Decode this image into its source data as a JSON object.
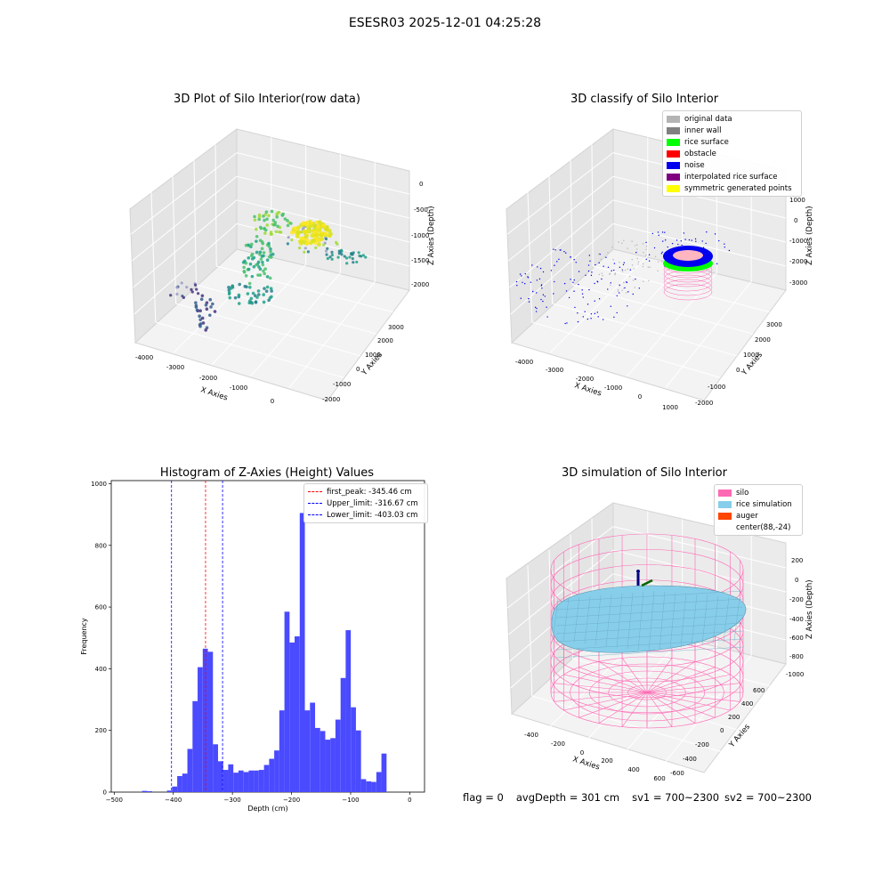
{
  "figure": {
    "suptitle": "ESESR03 2025-12-01 04:25:28"
  },
  "panels": {
    "raw": {
      "title": "3D Plot of Silo Interior(row data)",
      "xlabel": "X Axies",
      "ylabel": "Y Axies",
      "zlabel": "Z Axies (Depth)",
      "xticks": [
        "-4000",
        "-3000",
        "-2000",
        "-1000",
        "0"
      ],
      "yticks": [
        "3000",
        "2000",
        "1000",
        "0",
        "-1000",
        "-2000"
      ],
      "zticks": [
        "0",
        "-500",
        "-1000",
        "-1500",
        "-2000"
      ]
    },
    "classify": {
      "title": "3D classify of Silo Interior",
      "xlabel": "X Axies",
      "ylabel": "Y Axies",
      "zlabel": "Z Axies (Depth)",
      "xticks": [
        "-4000",
        "-3000",
        "-2000",
        "-1000",
        "0",
        "1000"
      ],
      "yticks": [
        "3000",
        "2000",
        "1000",
        "0",
        "-1000",
        "-2000"
      ],
      "zticks": [
        "1000",
        "0",
        "-1000",
        "-2000",
        "-3000"
      ],
      "legend": [
        {
          "label": "original data",
          "color": "#b4b4b4"
        },
        {
          "label": "inner wall",
          "color": "#808080"
        },
        {
          "label": "rice surface",
          "color": "#00ff00"
        },
        {
          "label": "obstacle",
          "color": "#ff0000"
        },
        {
          "label": "noise",
          "color": "#0000ee"
        },
        {
          "label": "interpolated rice surface",
          "color": "#800080"
        },
        {
          "label": "symmetric generated points",
          "color": "#ffff00"
        }
      ]
    },
    "histogram": {
      "title": "Histogram of Z-Axies (Height) Values",
      "xlabel": "Depth (cm)",
      "ylabel": "Frequency",
      "legend": [
        {
          "label": "first_peak: -345.46 cm",
          "color": "#ff0000"
        },
        {
          "label": "Upper_limit: -316.67 cm",
          "color": "#0000ff"
        },
        {
          "label": "Lower_limit: -403.03 cm",
          "color": "#0000ff"
        }
      ]
    },
    "simulation": {
      "title": "3D simulation of Silo Interior",
      "xlabel": "X Axies",
      "ylabel": "Y Axies",
      "zlabel": "Z Axies (Depth)",
      "xticks": [
        "-400",
        "-200",
        "0",
        "200",
        "400",
        "600"
      ],
      "yticks": [
        "600",
        "400",
        "200",
        "0",
        "-200",
        "-400",
        "-600"
      ],
      "zticks": [
        "200",
        "0",
        "-200",
        "-400",
        "-600",
        "-800",
        "-1000"
      ],
      "legend": [
        {
          "label": "silo",
          "color": "#ff69b4"
        },
        {
          "label": "rice simulation",
          "color": "#87ceeb"
        },
        {
          "label": "auger",
          "color": "#ff4500"
        },
        {
          "label": "center(88,-24)",
          "color": ""
        }
      ]
    }
  },
  "footer": {
    "flag": "flag = 0",
    "avg_depth": "avgDepth = 301 cm",
    "sv1": "sv1 = 700~2300",
    "sv2": "sv2 = 700~2300"
  },
  "colors": {
    "hist_bar": "#4a4aff",
    "silo": "#ff69b4",
    "rice": "#87ceeb"
  },
  "chart_data": {
    "type": "bar",
    "title": "Histogram of Z-Axies (Height) Values",
    "xlabel": "Depth (cm)",
    "ylabel": "Frequency",
    "xlim": [
      -505,
      25
    ],
    "ylim": [
      0,
      1010
    ],
    "xticks": [
      -500,
      -400,
      -300,
      -200,
      -100,
      0
    ],
    "yticks": [
      0,
      200,
      400,
      600,
      800,
      1000
    ],
    "bin_width": 8.64,
    "bins": [
      {
        "x": -453.0,
        "y": 4
      },
      {
        "x": -444.4,
        "y": 3
      },
      {
        "x": -410.7,
        "y": 5
      },
      {
        "x": -402.1,
        "y": 18
      },
      {
        "x": -393.4,
        "y": 52
      },
      {
        "x": -384.8,
        "y": 60
      },
      {
        "x": -376.2,
        "y": 140
      },
      {
        "x": -367.5,
        "y": 295
      },
      {
        "x": -358.9,
        "y": 405
      },
      {
        "x": -350.2,
        "y": 465
      },
      {
        "x": -341.6,
        "y": 455
      },
      {
        "x": -333.0,
        "y": 155
      },
      {
        "x": -324.3,
        "y": 100
      },
      {
        "x": -315.7,
        "y": 72
      },
      {
        "x": -307.1,
        "y": 90
      },
      {
        "x": -298.4,
        "y": 63
      },
      {
        "x": -289.8,
        "y": 70
      },
      {
        "x": -281.1,
        "y": 65
      },
      {
        "x": -272.5,
        "y": 70
      },
      {
        "x": -263.9,
        "y": 70
      },
      {
        "x": -255.2,
        "y": 72
      },
      {
        "x": -246.6,
        "y": 88
      },
      {
        "x": -237.9,
        "y": 108
      },
      {
        "x": -229.3,
        "y": 135
      },
      {
        "x": -220.7,
        "y": 265
      },
      {
        "x": -212.0,
        "y": 585
      },
      {
        "x": -203.4,
        "y": 485
      },
      {
        "x": -194.8,
        "y": 505
      },
      {
        "x": -186.1,
        "y": 905
      },
      {
        "x": -177.5,
        "y": 265
      },
      {
        "x": -168.8,
        "y": 290
      },
      {
        "x": -160.2,
        "y": 208
      },
      {
        "x": -151.6,
        "y": 198
      },
      {
        "x": -142.9,
        "y": 170
      },
      {
        "x": -134.3,
        "y": 175
      },
      {
        "x": -125.7,
        "y": 235
      },
      {
        "x": -117.0,
        "y": 370
      },
      {
        "x": -108.4,
        "y": 525
      },
      {
        "x": -99.7,
        "y": 275
      },
      {
        "x": -91.1,
        "y": 200
      },
      {
        "x": -82.5,
        "y": 42
      },
      {
        "x": -73.8,
        "y": 35
      },
      {
        "x": -65.2,
        "y": 33
      },
      {
        "x": -56.5,
        "y": 65
      },
      {
        "x": -47.9,
        "y": 125
      }
    ],
    "vlines": [
      {
        "name": "first_peak: -345.46 cm",
        "x": -345.46,
        "color": "#ff0000"
      },
      {
        "name": "Upper_limit: -316.67 cm",
        "x": -316.67,
        "color": "#0000ff"
      },
      {
        "name": "Lower_limit: -403.03 cm",
        "x": -403.03,
        "color": "#0000ff"
      }
    ],
    "legend_position": "top-right"
  }
}
